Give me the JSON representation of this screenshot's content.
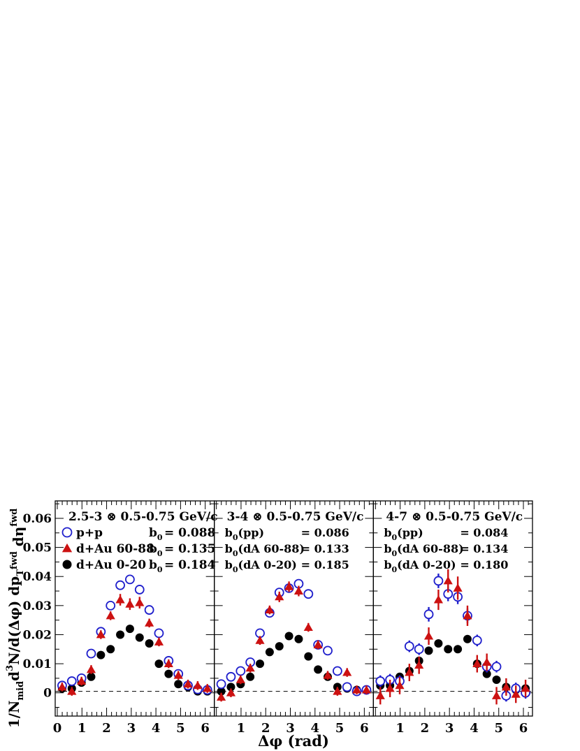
{
  "chart_data": {
    "type": "scatter",
    "ylabel_parts": [
      "1/N",
      "mid",
      "d",
      "3",
      "N/d(Δφ) dp",
      "T",
      "fwd",
      " dη",
      "fwd"
    ],
    "xlabel": "Δφ (rad)",
    "ylim": [
      -0.008,
      0.066
    ],
    "yticks": [
      0,
      0.01,
      0.02,
      0.03,
      0.04,
      0.05,
      0.06
    ],
    "ytick_labels": [
      "0",
      "0.01",
      "0.02",
      "0.03",
      "0.04",
      "0.05",
      "0.06"
    ],
    "xlim": [
      0,
      6.283
    ],
    "dashed_baseline": 0.0005,
    "colors": {
      "pp": "#1f1fcc",
      "dAu_periph": "#cc1111",
      "dAu_central": "#000000"
    },
    "markers": {
      "pp": "open-circle",
      "dAu_periph": "filled-triangle",
      "dAu_central": "filled-circle"
    },
    "panels": [
      {
        "title": "2.5-3 ⊗ 0.5-0.75 GeV/c",
        "xticks": [
          0,
          1,
          2,
          3,
          4,
          5,
          6
        ],
        "legend": [
          {
            "series": "pp",
            "label": "p+p",
            "b0_label": "b0",
            "b0_value": "= 0.088"
          },
          {
            "series": "dAu_periph",
            "label": "d+Au 60-88",
            "b0_label": "b0",
            "b0_value": "= 0.135"
          },
          {
            "series": "dAu_central",
            "label": "d+Au 0-20",
            "b0_label": "b0",
            "b0_value": "= 0.184"
          }
        ],
        "x": [
          0.196,
          0.589,
          0.982,
          1.374,
          1.767,
          2.16,
          2.553,
          2.945,
          3.338,
          3.731,
          4.123,
          4.516,
          4.909,
          5.301,
          5.694,
          6.087
        ],
        "series": {
          "pp": [
            0.0025,
            0.004,
            0.005,
            0.0135,
            0.021,
            0.03,
            0.037,
            0.039,
            0.0355,
            0.0285,
            0.0205,
            0.011,
            0.0065,
            0.0025,
            0.0012,
            0.001
          ],
          "dAu_periph": [
            0.002,
            0.0005,
            0.004,
            0.008,
            0.02,
            0.0265,
            0.032,
            0.0305,
            0.031,
            0.024,
            0.0175,
            0.01,
            0.006,
            0.003,
            0.0025,
            0.0015
          ],
          "dAu_central": [
            0.0015,
            0.0015,
            0.0035,
            0.0055,
            0.013,
            0.015,
            0.02,
            0.022,
            0.019,
            0.017,
            0.01,
            0.0065,
            0.003,
            0.002,
            0.0005,
            0.0005
          ]
        },
        "errors": {
          "pp": [
            0.0008,
            0.0008,
            0.0008,
            0.0008,
            0.0008,
            0.0008,
            0.0008,
            0.0008,
            0.0008,
            0.0008,
            0.0008,
            0.0008,
            0.0008,
            0.0008,
            0.0008,
            0.0008
          ],
          "dAu_periph": [
            0.0015,
            0.0015,
            0.0015,
            0.0015,
            0.0015,
            0.0015,
            0.002,
            0.002,
            0.002,
            0.0015,
            0.0015,
            0.0015,
            0.0015,
            0.0015,
            0.0015,
            0.0015
          ],
          "dAu_central": [
            0.0006,
            0.0006,
            0.0006,
            0.0006,
            0.0006,
            0.0006,
            0.0006,
            0.0006,
            0.0006,
            0.0006,
            0.0006,
            0.0006,
            0.0006,
            0.0006,
            0.0006,
            0.0006
          ]
        }
      },
      {
        "title": "3-4 ⊗ 0.5-0.75 GeV/c",
        "xticks": [
          1,
          2,
          3,
          4,
          5,
          6
        ],
        "legend": [
          {
            "series": "pp",
            "label": "",
            "b0_label": "b0(pp)",
            "b0_value": "= 0.086"
          },
          {
            "series": "dAu_periph",
            "label": "",
            "b0_label": "b0(dA 60-88)",
            "b0_value": "= 0.133"
          },
          {
            "series": "dAu_central",
            "label": "",
            "b0_label": "b0(dA 0-20)",
            "b0_value": "= 0.185"
          }
        ],
        "x": [
          0.196,
          0.589,
          0.982,
          1.374,
          1.767,
          2.16,
          2.553,
          2.945,
          3.338,
          3.731,
          4.123,
          4.516,
          4.909,
          5.301,
          5.694,
          6.087
        ],
        "series": {
          "pp": [
            0.003,
            0.0055,
            0.0075,
            0.0105,
            0.0205,
            0.0275,
            0.0345,
            0.036,
            0.0375,
            0.034,
            0.0165,
            0.0145,
            0.0075,
            0.002,
            0.0005,
            0.001
          ],
          "dAu_periph": [
            -0.0015,
            0.0,
            0.0045,
            0.0085,
            0.018,
            0.0285,
            0.033,
            0.0365,
            0.035,
            0.0225,
            0.0165,
            0.006,
            0.0005,
            0.007,
            0.001,
            0.001
          ],
          "dAu_central": [
            0.0005,
            0.002,
            0.003,
            0.0055,
            0.01,
            0.014,
            0.016,
            0.0195,
            0.0185,
            0.0125,
            0.008,
            0.0055,
            0.002,
            0.0015,
            0.001,
            0.001
          ]
        },
        "errors": {
          "pp": [
            0.0008,
            0.0008,
            0.0008,
            0.0008,
            0.0008,
            0.0008,
            0.0008,
            0.0008,
            0.0008,
            0.0008,
            0.0008,
            0.0008,
            0.0008,
            0.0008,
            0.0008,
            0.0008
          ],
          "dAu_periph": [
            0.0015,
            0.0015,
            0.0015,
            0.0015,
            0.0015,
            0.0015,
            0.0018,
            0.0018,
            0.0018,
            0.0015,
            0.0015,
            0.0015,
            0.0015,
            0.0015,
            0.0015,
            0.0015
          ],
          "dAu_central": [
            0.0006,
            0.0006,
            0.0006,
            0.0006,
            0.0006,
            0.0006,
            0.0006,
            0.0006,
            0.0006,
            0.0006,
            0.0006,
            0.0006,
            0.0006,
            0.0006,
            0.0006,
            0.0006
          ]
        }
      },
      {
        "title": "4-7 ⊗ 0.5-0.75 GeV/c",
        "xticks": [
          1,
          2,
          3,
          4,
          5,
          6
        ],
        "legend": [
          {
            "series": "pp",
            "label": "",
            "b0_label": "b0(pp)",
            "b0_value": "= 0.084"
          },
          {
            "series": "dAu_periph",
            "label": "",
            "b0_label": "b0(dA 60-88)",
            "b0_value": "= 0.134"
          },
          {
            "series": "dAu_central",
            "label": "",
            "b0_label": "b0(dA 0-20)",
            "b0_value": "= 0.180"
          }
        ],
        "x": [
          0.196,
          0.589,
          0.982,
          1.374,
          1.767,
          2.16,
          2.553,
          2.945,
          3.338,
          3.731,
          4.123,
          4.516,
          4.909,
          5.301,
          5.694,
          6.087
        ],
        "series": {
          "pp": [
            0.004,
            0.0045,
            0.004,
            0.016,
            0.015,
            0.027,
            0.0385,
            0.034,
            0.033,
            0.0265,
            0.018,
            0.009,
            0.009,
            -0.001,
            0.0015,
            0.0
          ],
          "dAu_periph": [
            -0.001,
            0.0015,
            0.0025,
            0.007,
            0.0095,
            0.0195,
            0.032,
            0.0385,
            0.036,
            0.0265,
            0.01,
            0.0105,
            -0.001,
            0.002,
            -0.0005,
            0.0015
          ],
          "dAu_central": [
            0.0025,
            0.0025,
            0.0055,
            0.0075,
            0.011,
            0.0145,
            0.017,
            0.015,
            0.015,
            0.0185,
            0.01,
            0.0065,
            0.0045,
            0.002,
            0.001,
            0.0015
          ]
        },
        "errors": {
          "pp": [
            0.002,
            0.002,
            0.002,
            0.002,
            0.002,
            0.0025,
            0.0025,
            0.0025,
            0.0025,
            0.0025,
            0.002,
            0.002,
            0.002,
            0.002,
            0.002,
            0.002
          ],
          "dAu_periph": [
            0.003,
            0.003,
            0.003,
            0.003,
            0.003,
            0.003,
            0.0035,
            0.004,
            0.004,
            0.0035,
            0.003,
            0.003,
            0.003,
            0.003,
            0.003,
            0.003
          ],
          "dAu_central": [
            0.0012,
            0.0012,
            0.0012,
            0.0012,
            0.0012,
            0.0012,
            0.0012,
            0.0012,
            0.0012,
            0.0012,
            0.0012,
            0.0012,
            0.0012,
            0.0012,
            0.0012,
            0.0012
          ]
        }
      }
    ]
  }
}
